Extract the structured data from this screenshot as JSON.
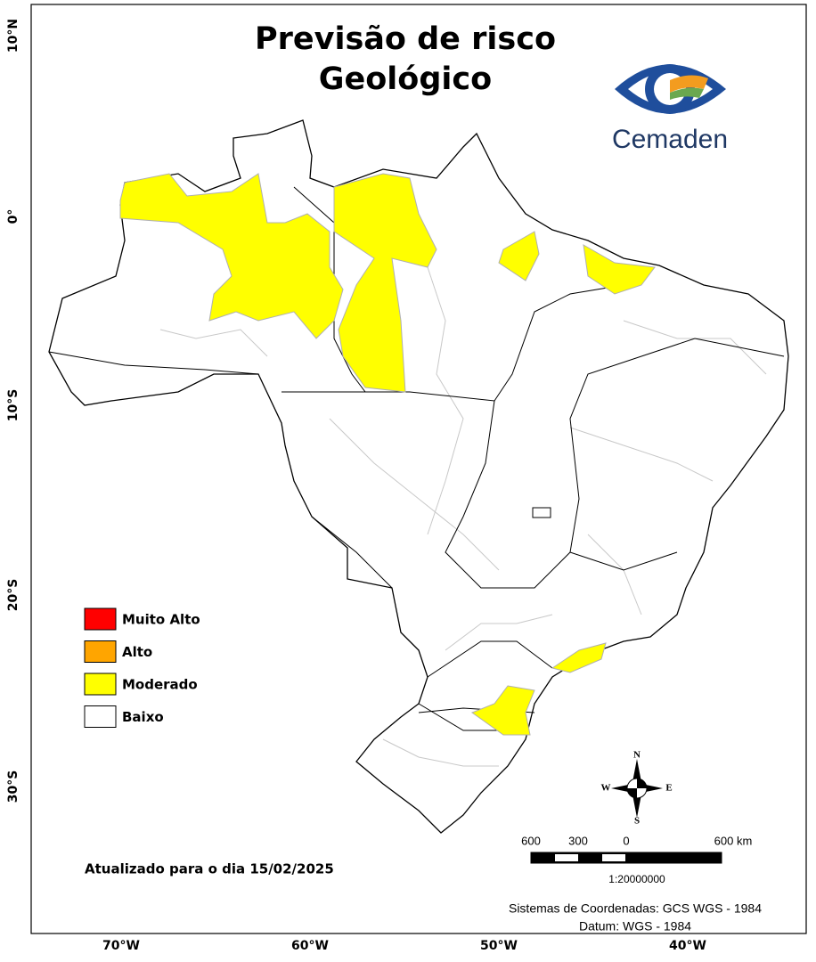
{
  "title": [
    "Previsão de risco",
    "Geológico"
  ],
  "logo": "Cemaden",
  "legend": [
    {
      "label": "Muito Alto",
      "color": "#ff0000"
    },
    {
      "label": "Alto",
      "color": "#ffa500"
    },
    {
      "label": "Moderado",
      "color": "#ffff00"
    },
    {
      "label": "Baixo",
      "color": "#ffffff"
    }
  ],
  "lat_labels": [
    "10°N",
    "0°",
    "10°S",
    "20°S",
    "30°S"
  ],
  "lon_labels": [
    "70°W",
    "60°W",
    "50°W",
    "40°W"
  ],
  "updated": "Atualizado para o dia 15/02/2025",
  "compass": {
    "n": "N",
    "e": "E",
    "s": "S",
    "w": "W"
  },
  "scale": {
    "labels": [
      "600",
      "300",
      "0",
      "600 km"
    ],
    "ratio": "1:20000000"
  },
  "footer": [
    "Sistemas de Coordenadas: GCS WGS - 1984",
    "Datum: WGS - 1984"
  ]
}
